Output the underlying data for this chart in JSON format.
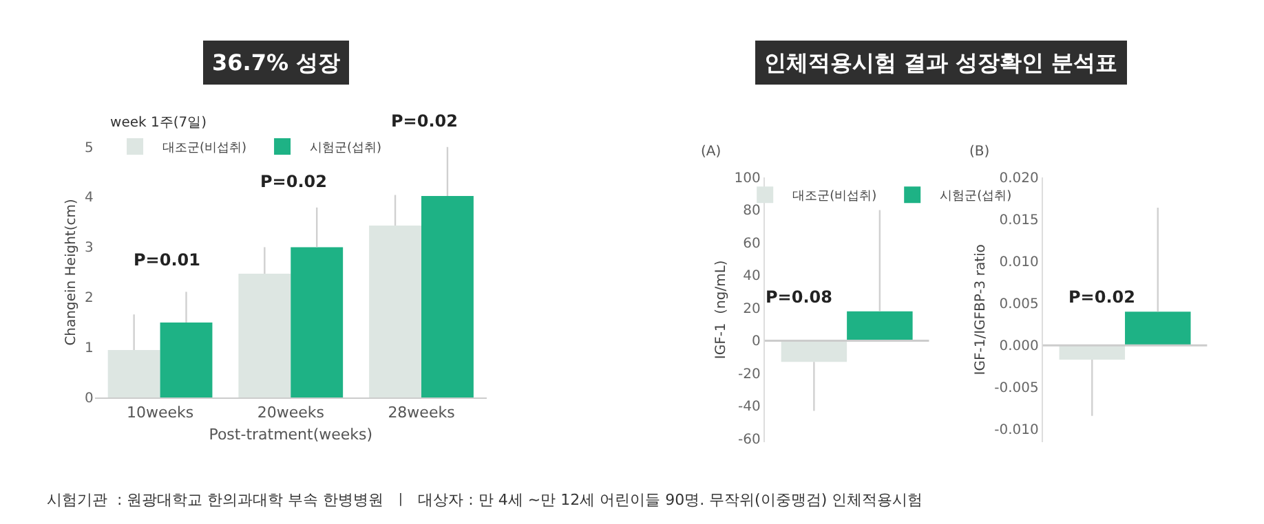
{
  "chart_data": [
    {
      "type": "bar",
      "title": "36.7% 성장",
      "xlabel": "Post-tratment(weeks)",
      "ylabel": "Changein Height(cm)",
      "legend_title": "week 1주(7일)",
      "categories": [
        "10weeks",
        "20weeks",
        "28weeks"
      ],
      "series": [
        {
          "name": "대조군(비섭취)",
          "color": "#dde6e2",
          "values": [
            0.95,
            2.47,
            3.43
          ],
          "errors": [
            [
              0.95,
              1.66
            ],
            [
              2.47,
              3.0
            ],
            [
              3.43,
              4.04
            ]
          ]
        },
        {
          "name": "시험군(섭취)",
          "color": "#1eb285",
          "values": [
            1.5,
            3.0,
            4.02
          ],
          "errors": [
            [
              1.5,
              2.11
            ],
            [
              3.0,
              3.79
            ],
            [
              4.02,
              5.0
            ]
          ]
        }
      ],
      "ylim": [
        0,
        5
      ],
      "yticks": [
        0,
        1,
        2,
        3,
        4,
        5
      ],
      "legend": "top left",
      "annotations": [
        "P=0.01",
        "P=0.02",
        "P=0.02"
      ]
    },
    {
      "type": "bar",
      "title": "인체적용시험 결과 성장확인 분석표",
      "subtitle": "(A)",
      "ylabel": "IGF-1  (ng/mL)",
      "categories": [
        null
      ],
      "series": [
        {
          "name": "대조군(비섭취)",
          "color": "#dde6e2",
          "values": [
            -13
          ],
          "errors": [
            [
              -43,
              -13
            ]
          ]
        },
        {
          "name": "시험군(섭취)",
          "color": "#1eb285",
          "values": [
            18
          ],
          "errors": [
            [
              18,
              80
            ]
          ]
        }
      ],
      "ylim": [
        -62,
        100
      ],
      "yticks": [
        -60,
        -40,
        -20,
        0,
        20,
        40,
        60,
        80,
        100
      ],
      "ref_lines": [
        {
          "axis": "y",
          "value": 0
        }
      ],
      "legend": "top",
      "annotations": [
        "P=0.08",
        "시험기관  : 원광대학교 한의과대학 부속 한병병원  ㅣ  대상자 : 만 4세 ~만 12세 어린이들 90명. 무작위(이중맹검) 인체적용시험"
      ]
    },
    {
      "type": "bar",
      "subtitle": "(B)",
      "ylabel": "IGF-1/IGFBP-3 ratio",
      "categories": [
        null
      ],
      "series": [
        {
          "color": "#dde6e2",
          "values": [
            -0.0017
          ],
          "errors": [
            [
              -0.0084,
              -0.0017
            ]
          ]
        },
        {
          "color": "#1eb285",
          "values": [
            0.004
          ],
          "errors": [
            [
              0.004,
              0.0164
            ]
          ]
        }
      ],
      "ylim": [
        -0.0115,
        0.02
      ],
      "yticks": [
        {
          "value": -0.01,
          "label": "-0.010"
        },
        {
          "value": -0.005,
          "label": "-0.005"
        },
        {
          "value": 0,
          "label": "0.000"
        },
        {
          "value": 0.005,
          "label": "0.005"
        },
        {
          "value": 0.01,
          "label": "0.010"
        },
        {
          "value": 0.015,
          "label": "0.015"
        },
        {
          "value": 0.02,
          "label": "0.020"
        }
      ],
      "ref_lines": [
        {
          "axis": "y",
          "value": 0
        }
      ],
      "legend": false,
      "annotations": [
        "P=0.02"
      ]
    }
  ]
}
